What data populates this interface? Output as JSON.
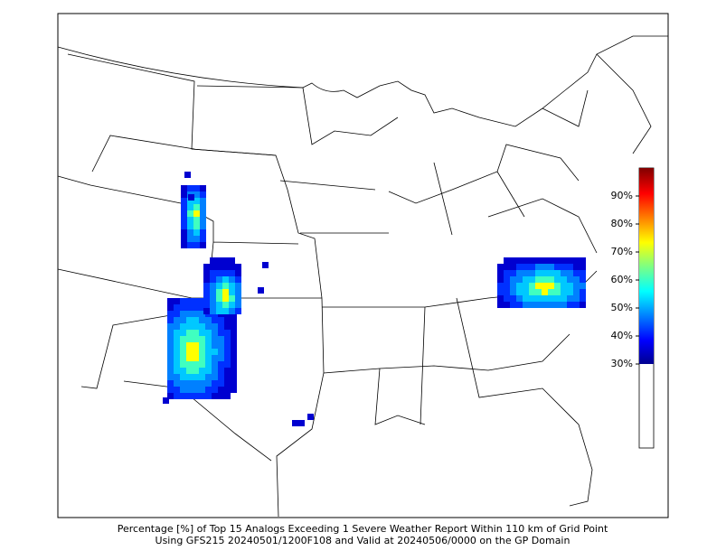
{
  "map": {
    "caption": [
      "Percentage [%] of Top 15 Analogs Exceeding 1 Severe Weather Report Within 110 km of Grid Point",
      "Using GFS215 20240501/1200F108 and Valid at 20240506/0000 on the GP Domain"
    ],
    "colorbar": {
      "lim": [
        0,
        100
      ],
      "ticks": [
        {
          "value": 30,
          "label": "30%"
        },
        {
          "value": 40,
          "label": "40%"
        },
        {
          "value": 50,
          "label": "50%"
        },
        {
          "value": 60,
          "label": "60%"
        },
        {
          "value": 70,
          "label": "70%"
        },
        {
          "value": 80,
          "label": "80%"
        },
        {
          "value": 90,
          "label": "90%"
        }
      ]
    }
  }
}
